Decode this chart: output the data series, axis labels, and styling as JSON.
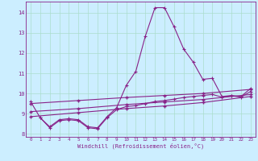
{
  "background_color": "#cceeff",
  "grid_color": "#aaddcc",
  "line_color": "#882288",
  "xlabel": "Windchill (Refroidissement éolien,°C)",
  "xlim": [
    -0.5,
    23.5
  ],
  "ylim": [
    7.85,
    14.55
  ],
  "yticks": [
    8,
    9,
    10,
    11,
    12,
    13,
    14
  ],
  "xticks": [
    0,
    1,
    2,
    3,
    4,
    5,
    6,
    7,
    8,
    9,
    10,
    11,
    12,
    13,
    14,
    15,
    16,
    17,
    18,
    19,
    20,
    21,
    22,
    23
  ],
  "line_main": {
    "x": [
      0,
      1,
      2,
      3,
      4,
      5,
      6,
      7,
      8,
      9,
      10,
      11,
      12,
      13,
      14,
      15,
      16,
      17,
      18,
      19,
      20,
      21,
      22,
      23
    ],
    "y": [
      9.6,
      8.8,
      8.35,
      8.7,
      8.75,
      8.7,
      8.35,
      8.3,
      8.85,
      9.3,
      10.4,
      11.1,
      12.85,
      14.25,
      14.25,
      13.3,
      12.2,
      11.55,
      10.7,
      10.75,
      9.85,
      9.9,
      9.85,
      10.25
    ]
  },
  "line_trend1": {
    "x": [
      0,
      5,
      10,
      14,
      18,
      23
    ],
    "y": [
      9.5,
      9.65,
      9.8,
      9.9,
      10.0,
      10.2
    ]
  },
  "line_trend2": {
    "x": [
      0,
      5,
      10,
      14,
      18,
      23
    ],
    "y": [
      9.1,
      9.25,
      9.45,
      9.58,
      9.7,
      9.95
    ]
  },
  "line_trend3": {
    "x": [
      0,
      5,
      10,
      14,
      18,
      23
    ],
    "y": [
      8.85,
      9.05,
      9.25,
      9.38,
      9.55,
      9.85
    ]
  },
  "line_low": {
    "x": [
      1,
      2,
      3,
      4,
      5,
      6,
      7,
      8,
      9,
      10,
      11,
      12,
      13,
      14,
      15,
      16,
      17,
      18,
      19,
      20,
      21,
      22,
      23
    ],
    "y": [
      8.8,
      8.3,
      8.65,
      8.7,
      8.65,
      8.3,
      8.25,
      8.8,
      9.2,
      9.35,
      9.4,
      9.5,
      9.6,
      9.65,
      9.72,
      9.8,
      9.85,
      9.9,
      9.95,
      9.82,
      9.88,
      9.82,
      10.1
    ]
  }
}
